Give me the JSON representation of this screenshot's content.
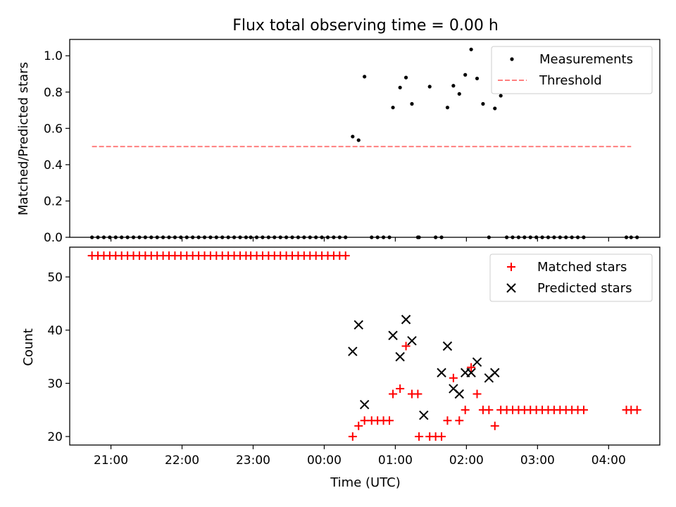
{
  "chart_data": [
    {
      "type": "scatter",
      "title": "Flux total observing time = 0.00 h",
      "xlabel": "",
      "ylabel": "Matched/Predicted stars",
      "xlim": [
        20.42,
        4.72
      ],
      "ylim": [
        0,
        1.09
      ],
      "xtick_values": [
        "21:00",
        "22:00",
        "23:00",
        "00:00",
        "01:00",
        "02:00",
        "03:00",
        "04:00"
      ],
      "ytick_labels": [
        "0.0",
        "0.2",
        "0.4",
        "0.6",
        "0.8",
        "1.0"
      ],
      "ytick_values": [
        0,
        0.2,
        0.4,
        0.6,
        0.8,
        1.0
      ],
      "legend_position": "top-right",
      "series": [
        {
          "name": "Measurements",
          "kind": "scatter",
          "color": "#000000",
          "marker": "dot",
          "x": [
            "20:44",
            "20:49",
            "20:54",
            "20:59",
            "21:04",
            "21:09",
            "21:14",
            "21:19",
            "21:24",
            "21:29",
            "21:34",
            "21:39",
            "21:44",
            "21:49",
            "21:54",
            "21:59",
            "22:04",
            "22:09",
            "22:14",
            "22:19",
            "22:24",
            "22:29",
            "22:34",
            "22:39",
            "22:44",
            "22:49",
            "22:54",
            "22:58",
            "23:03",
            "23:08",
            "23:13",
            "23:18",
            "23:23",
            "23:28",
            "23:33",
            "23:38",
            "23:43",
            "23:48",
            "23:53",
            "23:58",
            "00:03",
            "00:08",
            "00:13",
            "00:18",
            "00:24",
            "00:29",
            "00:34",
            "00:40",
            "00:45",
            "00:50",
            "00:55",
            "00:58",
            "01:04",
            "01:09",
            "01:14",
            "01:19",
            "01:20",
            "01:29",
            "01:34",
            "01:39",
            "01:44",
            "01:49",
            "01:54",
            "01:59",
            "02:04",
            "02:09",
            "02:14",
            "02:19",
            "02:24",
            "02:29",
            "02:34",
            "02:39",
            "02:44",
            "02:49",
            "02:54",
            "02:59",
            "03:04",
            "03:09",
            "03:14",
            "03:19",
            "03:24",
            "03:29",
            "03:34",
            "03:39",
            "04:15",
            "04:19",
            "04:24"
          ],
          "y": [
            0,
            0,
            0,
            0,
            0,
            0,
            0,
            0,
            0,
            0,
            0,
            0,
            0,
            0,
            0,
            0,
            0,
            0,
            0,
            0,
            0,
            0,
            0,
            0,
            0,
            0,
            0,
            0,
            0,
            0,
            0,
            0,
            0,
            0,
            0,
            0,
            0,
            0,
            0,
            0,
            0,
            0,
            0,
            0,
            0.555,
            0.535,
            0.885,
            0,
            0,
            0,
            0,
            0.715,
            0.825,
            0.88,
            0.735,
            0,
            0,
            0.83,
            0,
            0,
            0.715,
            0.835,
            0.79,
            0.895,
            1.035,
            0.875,
            0.735,
            0,
            0.71,
            0.78,
            0,
            0,
            0,
            0,
            0,
            0,
            0,
            0,
            0,
            0,
            0,
            0,
            0,
            0,
            0,
            0,
            0
          ]
        },
        {
          "name": "Threshold",
          "kind": "line",
          "color": "#ff7f7f",
          "dash": "dashed",
          "x": [
            "20:44",
            "04:19"
          ],
          "y": [
            0.5,
            0.5
          ]
        }
      ]
    },
    {
      "type": "scatter",
      "title": "",
      "xlabel": "Time (UTC)",
      "ylabel": "Count",
      "xlim": [
        20.42,
        4.72
      ],
      "ylim": [
        18.4,
        55.6
      ],
      "xtick_labels": [
        "21:00",
        "22:00",
        "23:00",
        "00:00",
        "01:00",
        "02:00",
        "03:00",
        "04:00"
      ],
      "xtick_values": [
        "21:00",
        "22:00",
        "23:00",
        "00:00",
        "01:00",
        "02:00",
        "03:00",
        "04:00"
      ],
      "ytick_labels": [
        "20",
        "30",
        "40",
        "50"
      ],
      "ytick_values": [
        20,
        30,
        40,
        50
      ],
      "legend_position": "top-right",
      "series": [
        {
          "name": "Matched stars",
          "kind": "scatter",
          "color": "#ff0000",
          "marker": "plus",
          "x": [
            "20:44",
            "20:49",
            "20:54",
            "20:59",
            "21:04",
            "21:09",
            "21:14",
            "21:19",
            "21:24",
            "21:29",
            "21:34",
            "21:39",
            "21:44",
            "21:49",
            "21:54",
            "21:59",
            "22:04",
            "22:09",
            "22:14",
            "22:19",
            "22:24",
            "22:29",
            "22:34",
            "22:39",
            "22:44",
            "22:49",
            "22:54",
            "22:58",
            "23:03",
            "23:08",
            "23:13",
            "23:18",
            "23:23",
            "23:28",
            "23:33",
            "23:38",
            "23:43",
            "23:48",
            "23:53",
            "23:58",
            "00:03",
            "00:08",
            "00:13",
            "00:18",
            "00:24",
            "00:29",
            "00:34",
            "00:40",
            "00:45",
            "00:50",
            "00:55",
            "00:58",
            "01:04",
            "01:09",
            "01:14",
            "01:19",
            "01:20",
            "01:29",
            "01:34",
            "01:39",
            "01:44",
            "01:49",
            "01:54",
            "01:59",
            "02:04",
            "02:09",
            "02:14",
            "02:19",
            "02:24",
            "02:29",
            "02:34",
            "02:39",
            "02:44",
            "02:49",
            "02:54",
            "02:59",
            "03:04",
            "03:09",
            "03:14",
            "03:19",
            "03:24",
            "03:29",
            "03:34",
            "03:39",
            "04:15",
            "04:19",
            "04:24"
          ],
          "y": [
            54,
            54,
            54,
            54,
            54,
            54,
            54,
            54,
            54,
            54,
            54,
            54,
            54,
            54,
            54,
            54,
            54,
            54,
            54,
            54,
            54,
            54,
            54,
            54,
            54,
            54,
            54,
            54,
            54,
            54,
            54,
            54,
            54,
            54,
            54,
            54,
            54,
            54,
            54,
            54,
            54,
            54,
            54,
            54,
            20,
            22,
            23,
            23,
            23,
            23,
            23,
            28,
            29,
            37,
            28,
            28,
            20,
            20,
            20,
            20,
            23,
            31,
            23,
            25,
            33,
            28,
            25,
            25,
            22,
            25,
            25,
            25,
            25,
            25,
            25,
            25,
            25,
            25,
            25,
            25,
            25,
            25,
            25,
            25,
            25,
            25,
            25
          ]
        },
        {
          "name": "Predicted stars",
          "kind": "scatter",
          "color": "#000000",
          "marker": "x",
          "x": [
            "00:24",
            "00:29",
            "00:34",
            "00:58",
            "01:04",
            "01:09",
            "01:14",
            "01:24",
            "01:39",
            "01:44",
            "01:49",
            "01:54",
            "01:59",
            "02:04",
            "02:09",
            "02:19",
            "02:24"
          ],
          "y": [
            36,
            41,
            26,
            39,
            35,
            42,
            38,
            24,
            32,
            37,
            29,
            28,
            32,
            32,
            34,
            31,
            32
          ]
        }
      ]
    }
  ]
}
